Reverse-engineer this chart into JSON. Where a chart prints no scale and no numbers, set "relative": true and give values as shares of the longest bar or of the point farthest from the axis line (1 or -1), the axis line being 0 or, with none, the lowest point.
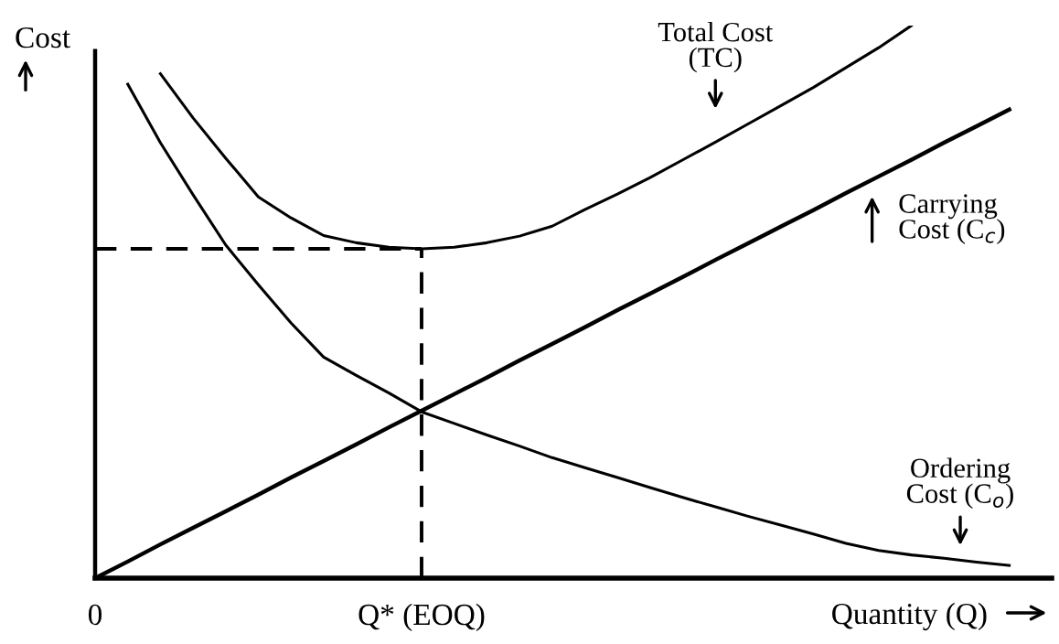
{
  "chart_data": {
    "type": "line",
    "relative": true,
    "ylabel": "Cost",
    "xlabel": "Quantity (Q)",
    "categories": [
      "0",
      null,
      null,
      null,
      null,
      null,
      null,
      null,
      null,
      null,
      "Q* (EOQ)",
      null,
      null,
      null,
      null,
      null,
      null,
      null,
      null,
      null,
      null,
      null,
      null,
      null,
      null,
      null,
      null,
      null,
      null,
      null
    ],
    "line_style": "solid",
    "marker": "none",
    "grid": false,
    "series": [
      {
        "name": "Total Cost (TC)",
        "color": "#000000",
        "values": [
          null,
          null,
          0.913,
          0.833,
          0.76,
          0.69,
          0.652,
          0.62,
          0.607,
          0.599,
          0.596,
          0.599,
          0.607,
          0.619,
          0.637,
          0.667,
          0.695,
          0.725,
          0.757,
          0.789,
          0.822,
          0.855,
          0.888,
          0.924,
          0.96,
          1.0,
          null,
          null,
          null,
          null
        ]
      },
      {
        "name": "Carrying Cost (C$_{c}$)",
        "color": "#000000",
        "values": [
          0,
          0.03,
          0.061,
          0.091,
          0.121,
          0.151,
          0.182,
          0.212,
          0.242,
          0.273,
          0.303,
          0.333,
          0.363,
          0.394,
          0.424,
          0.454,
          0.485,
          0.515,
          0.545,
          0.576,
          0.606,
          0.636,
          0.666,
          0.697,
          0.727,
          0.757,
          0.788,
          0.818,
          0.848,
          null
        ]
      },
      {
        "name": "Ordering Cost (C$_{o}$)",
        "color": "#000000",
        "values": [
          null,
          0.894,
          0.788,
          0.694,
          0.603,
          0.531,
          0.462,
          0.4,
          0.367,
          0.335,
          0.301,
          0.28,
          0.259,
          0.239,
          0.218,
          0.2,
          0.182,
          0.164,
          0.146,
          0.129,
          0.112,
          0.096,
          0.08,
          0.063,
          0.05,
          0.042,
          0.036,
          0.029,
          0.023,
          null
        ]
      }
    ],
    "ref_lines": [
      {
        "axis": "x",
        "value": "Q* (EOQ)",
        "line_style": "dashed",
        "color": "#000000"
      },
      {
        "axis": "y",
        "value": 0.596,
        "line_style": "dashed",
        "color": "#000000"
      }
    ]
  }
}
